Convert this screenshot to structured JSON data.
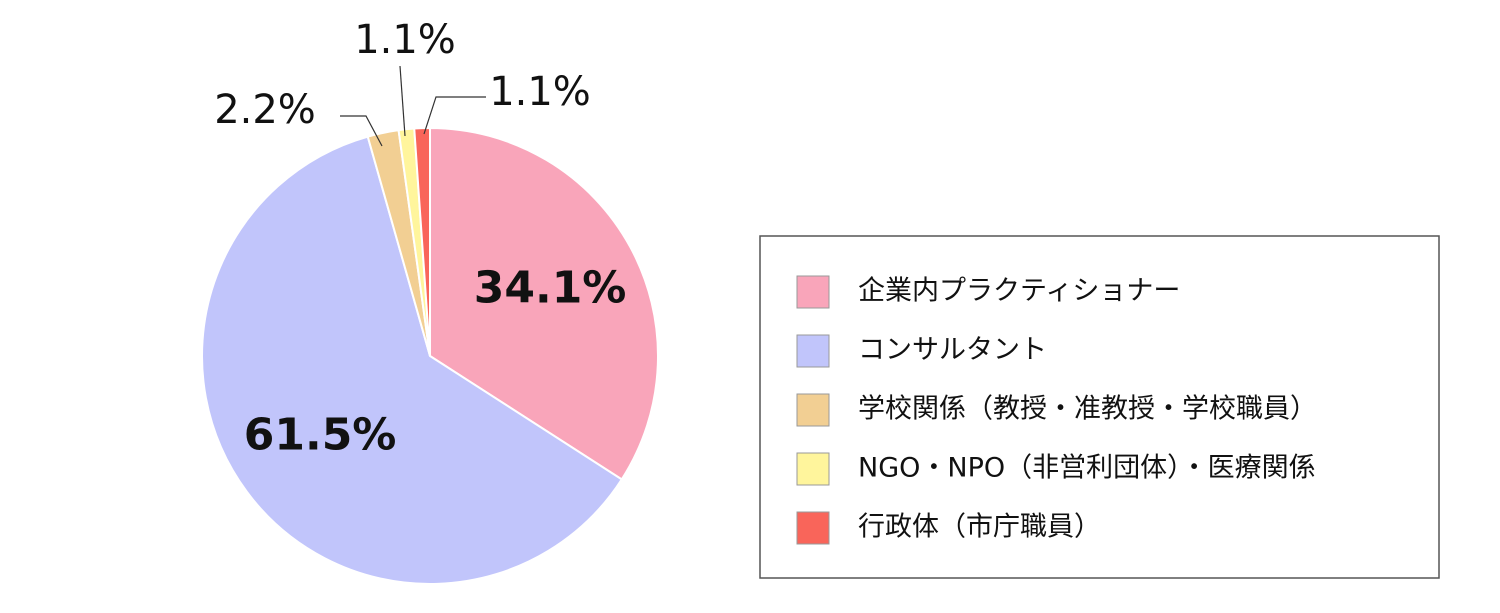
{
  "chart_data": {
    "type": "pie",
    "categories": [
      "企業内プラクティショナー",
      "コンサルタント",
      "学校関係（教授・准教授・学校職員）",
      "NGO・NPO（非営利団体）・医療関係",
      "行政体（市庁職員）"
    ],
    "values": [
      34.1,
      61.5,
      2.2,
      1.1,
      1.1
    ],
    "value_labels": [
      "34.1%",
      "61.5%",
      "2.2%",
      "1.1%",
      "1.1%"
    ],
    "colors": [
      "#f9a5ba",
      "#c1c5fb",
      "#f2cf93",
      "#fff59c",
      "#f9655a"
    ],
    "legend": "right"
  }
}
